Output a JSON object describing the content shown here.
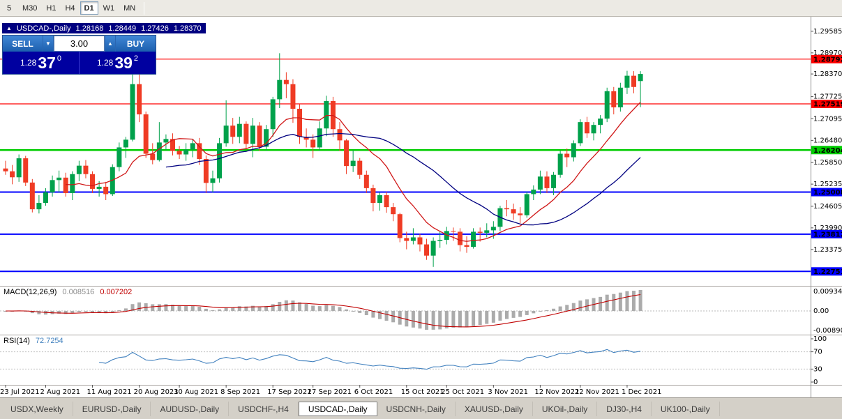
{
  "colors": {
    "bull": "#00A14B",
    "bear": "#EF3B24",
    "ma_fast": "#D01818",
    "ma_slow": "#000080",
    "macd_hist": "#ABABAB",
    "macd_signal": "#C00000",
    "rsi": "#4080BE"
  },
  "toolbar": {
    "timeframes": [
      "5",
      "M30",
      "H1",
      "H4",
      "D1",
      "W1",
      "MN"
    ],
    "active": "D1"
  },
  "chart_header": {
    "direction_icon": "▲",
    "symbol": "USDCAD-,Daily",
    "open": "1.28168",
    "high": "1.28449",
    "low": "1.27426",
    "close": "1.28370"
  },
  "trade_panel": {
    "sell_label": "SELL",
    "buy_label": "BUY",
    "volume": "3.00",
    "spinner_down": "▼",
    "spinner_up": "▲",
    "bid": {
      "big": "1.28",
      "pips": "37",
      "sup": "0"
    },
    "ask": {
      "big": "1.28",
      "pips": "39",
      "sup": "2"
    }
  },
  "chart_data": {
    "type": "candlestick",
    "symbol": "USDCAD",
    "timeframe": "Daily",
    "price_max": 1.2988,
    "price_min": 1.2238,
    "price_axis_labels": [
      1.29585,
      1.2897,
      1.2837,
      1.27725,
      1.27095,
      1.2648,
      1.2585,
      1.25235,
      1.24605,
      1.2399,
      1.23375
    ],
    "hlines": [
      {
        "price": 1.28792,
        "color": "#FF0000",
        "width": 1.2
      },
      {
        "price": 1.27519,
        "color": "#FF0000",
        "width": 1.2
      },
      {
        "price": 1.26204,
        "color": "#00CC00",
        "width": 2.5
      },
      {
        "price": 1.25008,
        "color": "#0000FF",
        "width": 2
      },
      {
        "price": 1.23812,
        "color": "#0000FF",
        "width": 2
      },
      {
        "price": 1.22751,
        "color": "#0000FF",
        "width": 2
      }
    ],
    "ma_fast_period": 10,
    "ma_slow_period": 25,
    "date_ticks": [
      {
        "index": 0,
        "label": "23 Jul 2021"
      },
      {
        "index": 6,
        "label": "2 Aug 2021"
      },
      {
        "index": 13,
        "label": "11 Aug 2021"
      },
      {
        "index": 20,
        "label": "20 Aug 2021"
      },
      {
        "index": 26,
        "label": "30 Aug 2021"
      },
      {
        "index": 33,
        "label": "8 Sep 2021"
      },
      {
        "index": 40,
        "label": "17 Sep 2021"
      },
      {
        "index": 46,
        "label": "27 Sep 2021"
      },
      {
        "index": 53,
        "label": "6 Oct 2021"
      },
      {
        "index": 60,
        "label": "15 Oct 2021"
      },
      {
        "index": 66,
        "label": "25 Oct 2021"
      },
      {
        "index": 73,
        "label": "3 Nov 2021"
      },
      {
        "index": 80,
        "label": "12 Nov 2021"
      },
      {
        "index": 86,
        "label": "22 Nov 2021"
      },
      {
        "index": 93,
        "label": "1 Dec 2021"
      }
    ],
    "candles": [
      [
        1.2568,
        1.259,
        1.255,
        1.256
      ],
      [
        1.256,
        1.2578,
        1.2523,
        1.2543
      ],
      [
        1.2543,
        1.2608,
        1.253,
        1.2597
      ],
      [
        1.2597,
        1.2604,
        1.2518,
        1.2528
      ],
      [
        1.2528,
        1.2538,
        1.2443,
        1.2452
      ],
      [
        1.2452,
        1.2492,
        1.244,
        1.247
      ],
      [
        1.247,
        1.2512,
        1.2462,
        1.25
      ],
      [
        1.25,
        1.2548,
        1.2488,
        1.2535
      ],
      [
        1.2535,
        1.2562,
        1.25,
        1.2542
      ],
      [
        1.2542,
        1.2556,
        1.2488,
        1.2498
      ],
      [
        1.2498,
        1.256,
        1.2478,
        1.2552
      ],
      [
        1.2552,
        1.259,
        1.2532,
        1.2576
      ],
      [
        1.2576,
        1.2592,
        1.254,
        1.2552
      ],
      [
        1.2552,
        1.256,
        1.2498,
        1.251
      ],
      [
        1.251,
        1.2532,
        1.2488,
        1.2516
      ],
      [
        1.2516,
        1.253,
        1.2478,
        1.2495
      ],
      [
        1.2495,
        1.258,
        1.249,
        1.2572
      ],
      [
        1.2572,
        1.2642,
        1.256,
        1.2628
      ],
      [
        1.2628,
        1.2658,
        1.2598,
        1.265
      ],
      [
        1.265,
        1.2842,
        1.2645,
        1.2808
      ],
      [
        1.2808,
        1.2848,
        1.27,
        1.2722
      ],
      [
        1.2722,
        1.273,
        1.2598,
        1.261
      ],
      [
        1.261,
        1.264,
        1.258,
        1.2592
      ],
      [
        1.2592,
        1.27,
        1.2588,
        1.2642
      ],
      [
        1.2642,
        1.2665,
        1.262,
        1.2652
      ],
      [
        1.2652,
        1.2668,
        1.2605,
        1.2618
      ],
      [
        1.2618,
        1.2632,
        1.2595,
        1.2608
      ],
      [
        1.2608,
        1.264,
        1.259,
        1.2622
      ],
      [
        1.2622,
        1.2652,
        1.26,
        1.264
      ],
      [
        1.264,
        1.2655,
        1.2578,
        1.2595
      ],
      [
        1.2595,
        1.2605,
        1.2498,
        1.2527
      ],
      [
        1.2527,
        1.2562,
        1.25,
        1.254
      ],
      [
        1.254,
        1.2655,
        1.2528,
        1.264
      ],
      [
        1.264,
        1.2762,
        1.263,
        1.269
      ],
      [
        1.269,
        1.2712,
        1.2638,
        1.2658
      ],
      [
        1.2658,
        1.2715,
        1.264,
        1.2695
      ],
      [
        1.2695,
        1.2702,
        1.2622,
        1.2638
      ],
      [
        1.2638,
        1.2712,
        1.26,
        1.269
      ],
      [
        1.269,
        1.27,
        1.2618,
        1.263
      ],
      [
        1.263,
        1.2692,
        1.2618,
        1.268
      ],
      [
        1.268,
        1.2772,
        1.2658,
        1.2765
      ],
      [
        1.2765,
        1.2896,
        1.274,
        1.282
      ],
      [
        1.282,
        1.2842,
        1.2768,
        1.2808
      ],
      [
        1.2808,
        1.2822,
        1.2698,
        1.2738
      ],
      [
        1.2738,
        1.2752,
        1.2638,
        1.2658
      ],
      [
        1.2658,
        1.2682,
        1.2628,
        1.265
      ],
      [
        1.265,
        1.2665,
        1.2598,
        1.2628
      ],
      [
        1.2628,
        1.2702,
        1.2618,
        1.2682
      ],
      [
        1.2682,
        1.2775,
        1.266,
        1.276
      ],
      [
        1.276,
        1.2772,
        1.2658,
        1.268
      ],
      [
        1.268,
        1.27,
        1.2618,
        1.2648
      ],
      [
        1.2648,
        1.2652,
        1.2552,
        1.2575
      ],
      [
        1.2575,
        1.262,
        1.2558,
        1.259
      ],
      [
        1.259,
        1.2598,
        1.2538,
        1.255
      ],
      [
        1.255,
        1.2562,
        1.2498,
        1.2512
      ],
      [
        1.2512,
        1.2522,
        1.2446,
        1.247
      ],
      [
        1.247,
        1.25,
        1.2448,
        1.2492
      ],
      [
        1.2492,
        1.2502,
        1.2442,
        1.2458
      ],
      [
        1.2458,
        1.247,
        1.2418,
        1.2438
      ],
      [
        1.2438,
        1.2442,
        1.2358,
        1.237
      ],
      [
        1.237,
        1.2388,
        1.2338,
        1.2362
      ],
      [
        1.2362,
        1.2398,
        1.2352,
        1.2372
      ],
      [
        1.2372,
        1.2382,
        1.2332,
        1.2352
      ],
      [
        1.2352,
        1.2368,
        1.2308,
        1.232
      ],
      [
        1.232,
        1.2372,
        1.2288,
        1.2362
      ],
      [
        1.2362,
        1.2388,
        1.2342,
        1.2365
      ],
      [
        1.2365,
        1.2402,
        1.2352,
        1.239
      ],
      [
        1.239,
        1.24,
        1.2362,
        1.2388
      ],
      [
        1.2388,
        1.2398,
        1.2332,
        1.235
      ],
      [
        1.235,
        1.2375,
        1.2328,
        1.2345
      ],
      [
        1.2345,
        1.2398,
        1.234,
        1.2388
      ],
      [
        1.2388,
        1.24,
        1.236,
        1.2385
      ],
      [
        1.2385,
        1.2412,
        1.2372,
        1.2392
      ],
      [
        1.2392,
        1.2418,
        1.2368,
        1.2402
      ],
      [
        1.2402,
        1.2462,
        1.239,
        1.2455
      ],
      [
        1.2455,
        1.2478,
        1.2432,
        1.2452
      ],
      [
        1.2452,
        1.2468,
        1.2422,
        1.244
      ],
      [
        1.244,
        1.2458,
        1.2412,
        1.2435
      ],
      [
        1.2435,
        1.2502,
        1.2428,
        1.2495
      ],
      [
        1.2495,
        1.252,
        1.2478,
        1.2508
      ],
      [
        1.2508,
        1.2562,
        1.2495,
        1.2545
      ],
      [
        1.2545,
        1.256,
        1.2498,
        1.2512
      ],
      [
        1.2512,
        1.2558,
        1.2492,
        1.255
      ],
      [
        1.255,
        1.2618,
        1.2542,
        1.261
      ],
      [
        1.261,
        1.2625,
        1.2572,
        1.26
      ],
      [
        1.26,
        1.2648,
        1.2588,
        1.264
      ],
      [
        1.264,
        1.2708,
        1.2632,
        1.27
      ],
      [
        1.27,
        1.2715,
        1.2655,
        1.2668
      ],
      [
        1.2668,
        1.27,
        1.2648,
        1.2692
      ],
      [
        1.2692,
        1.272,
        1.2668,
        1.271
      ],
      [
        1.271,
        1.2798,
        1.27,
        1.2788
      ],
      [
        1.2788,
        1.28,
        1.2722,
        1.2742
      ],
      [
        1.2742,
        1.2812,
        1.273,
        1.2798
      ],
      [
        1.2798,
        1.2846,
        1.278,
        1.2832
      ],
      [
        1.2832,
        1.2845,
        1.2782,
        1.28
      ],
      [
        1.28168,
        1.28449,
        1.27426,
        1.2837
      ]
    ],
    "macd": {
      "label": "MACD(12,26,9)",
      "value_main": "0.008516",
      "value_signal": "0.007202",
      "axis_max": "0.009345",
      "axis_zero": "0.00",
      "axis_min": "-0.008907"
    },
    "rsi": {
      "label": "RSI(14)",
      "value": "72.7254",
      "axis": [
        "100",
        "70",
        "30",
        "0"
      ],
      "levels": [
        70,
        30
      ]
    }
  },
  "tabs": {
    "active_index": 4,
    "items": [
      "USDX,Weekly",
      "EURUSD-,Daily",
      "AUDUSD-,Daily",
      "USDCHF-,H4",
      "USDCAD-,Daily",
      "USDCNH-,Daily",
      "XAUUSD-,Daily",
      "UKOil-,Daily",
      "DJ30-,H4",
      "UK100-,Daily"
    ]
  }
}
